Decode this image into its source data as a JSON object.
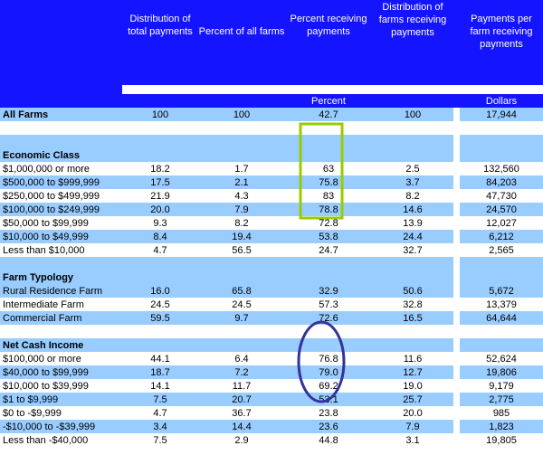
{
  "headers": [
    "Distribution of total payments",
    "Percent of all farms",
    "Percent receiving payments",
    "Distribution of farms receiving payments",
    "Payments per farm receiving payments"
  ],
  "units": {
    "percent": "Percent",
    "dollars": "Dollars"
  },
  "all_farms": {
    "label": "All Farms",
    "values": [
      "100",
      "100",
      "42.7",
      "100",
      "17,944"
    ]
  },
  "economic_class": {
    "title": "Economic Class",
    "rows": [
      {
        "label": "$1,000,000 or more",
        "values": [
          "18.2",
          "1.7",
          "63",
          "2.5",
          "132,560"
        ]
      },
      {
        "label": "$500,000 to $999,999",
        "values": [
          "17.5",
          "2.1",
          "75.8",
          "3.7",
          "84,203"
        ]
      },
      {
        "label": "$250,000 to $499,999",
        "values": [
          "21.9",
          "4.3",
          "83",
          "8.2",
          "47,730"
        ]
      },
      {
        "label": "$100,000 to $249,999",
        "values": [
          "20.0",
          "7.9",
          "78.8",
          "14.6",
          "24,570"
        ]
      },
      {
        "label": "$50,000 to $99,999",
        "values": [
          "9.3",
          "8.2",
          "72.8",
          "13.9",
          "12,027"
        ]
      },
      {
        "label": "$10,000 to $49,999",
        "values": [
          "8.4",
          "19.4",
          "53.8",
          "24.4",
          "6,212"
        ]
      },
      {
        "label": "Less than $10,000",
        "values": [
          "4.7",
          "56.5",
          "24.7",
          "32.7",
          "2,565"
        ]
      }
    ]
  },
  "farm_typology": {
    "title": "Farm Typology",
    "rows": [
      {
        "label": "Rural Residence Farm",
        "values": [
          "16.0",
          "65.8",
          "32.9",
          "50.6",
          "5,672"
        ]
      },
      {
        "label": "Intermediate Farm",
        "values": [
          "24.5",
          "24.5",
          "57.3",
          "32.8",
          "13,379"
        ]
      },
      {
        "label": "Commercial Farm",
        "values": [
          "59.5",
          "9.7",
          "72.6",
          "16.5",
          "64,644"
        ]
      }
    ]
  },
  "net_cash_income": {
    "title": "Net Cash Income",
    "rows": [
      {
        "label": "$100,000 or more",
        "values": [
          "44.1",
          "6.4",
          "76.8",
          "11.6",
          "52,624"
        ]
      },
      {
        "label": "$40,000 to $99,999",
        "values": [
          "18.7",
          "7.2",
          "79.0",
          "12.7",
          "19,806"
        ]
      },
      {
        "label": "$10,000 to $39,999",
        "values": [
          "14.1",
          "11.7",
          "69.2",
          "19.0",
          "9,179"
        ]
      },
      {
        "label": "$1 to $9,999",
        "values": [
          "7.5",
          "20.7",
          "53.1",
          "25.7",
          "2,775"
        ]
      },
      {
        "label": "$0 to -$9,999",
        "values": [
          "4.7",
          "36.7",
          "23.8",
          "20.0",
          "985"
        ]
      },
      {
        "label": "-$10,000 to -$39,999",
        "values": [
          "3.4",
          "14.4",
          "23.6",
          "7.9",
          "1,823"
        ]
      },
      {
        "label": "Less than -$40,000",
        "values": [
          "7.5",
          "2.9",
          "44.8",
          "3.1",
          "19,805"
        ]
      }
    ]
  },
  "highlight_colors": {
    "economic_box": "#99cc00",
    "income_ellipse": "#333399"
  }
}
